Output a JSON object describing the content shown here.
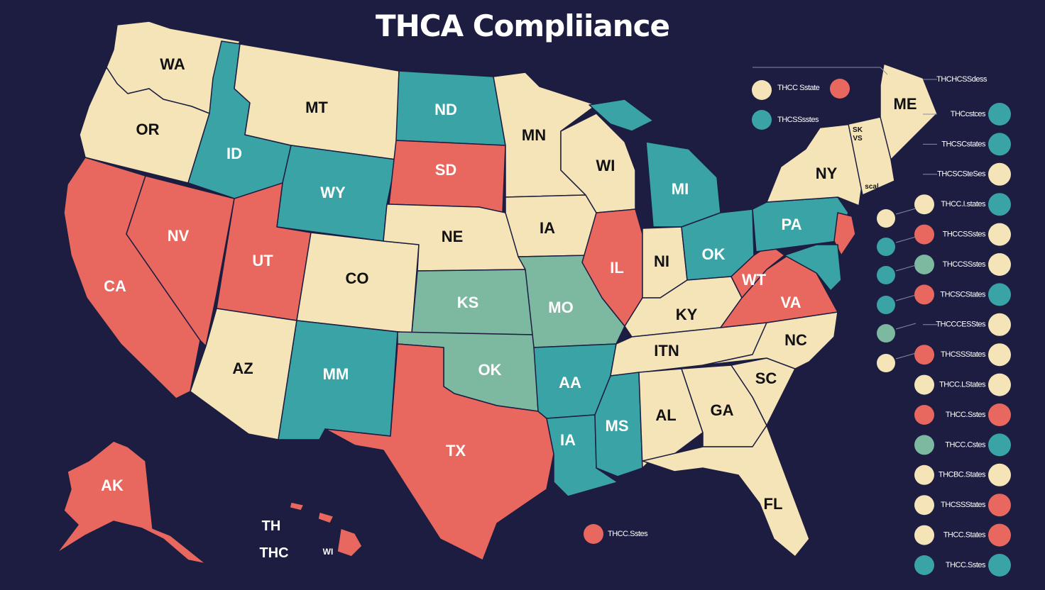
{
  "title": "THCA Compliiance",
  "colors": {
    "background": "#1c1d40",
    "cream": "#f4e4b8",
    "teal": "#3aa3a6",
    "red": "#e8675e",
    "sage": "#7db8a0",
    "border": "#1c1d40",
    "label_dark": "#111111",
    "label_light": "#ffffff"
  },
  "states": [
    {
      "id": "wa",
      "label": "WA",
      "fill": "cream"
    },
    {
      "id": "or",
      "label": "OR",
      "fill": "cream"
    },
    {
      "id": "ca",
      "label": "CA",
      "fill": "red"
    },
    {
      "id": "id",
      "label": "ID",
      "fill": "teal"
    },
    {
      "id": "nv",
      "label": "NV",
      "fill": "red"
    },
    {
      "id": "mt",
      "label": "MT",
      "fill": "cream"
    },
    {
      "id": "wy",
      "label": "WY",
      "fill": "teal"
    },
    {
      "id": "ut",
      "label": "UT",
      "fill": "red"
    },
    {
      "id": "az",
      "label": "AZ",
      "fill": "cream"
    },
    {
      "id": "co",
      "label": "CO",
      "fill": "cream"
    },
    {
      "id": "nm",
      "label": "MM",
      "fill": "teal"
    },
    {
      "id": "nd",
      "label": "ND",
      "fill": "teal"
    },
    {
      "id": "sd",
      "label": "SD",
      "fill": "red"
    },
    {
      "id": "ne",
      "label": "NE",
      "fill": "cream"
    },
    {
      "id": "ks",
      "label": "KS",
      "fill": "sage"
    },
    {
      "id": "ok",
      "label": "OK",
      "fill": "sage"
    },
    {
      "id": "tx",
      "label": "TX",
      "fill": "red"
    },
    {
      "id": "mn",
      "label": "MN",
      "fill": "cream"
    },
    {
      "id": "ia",
      "label": "IA",
      "fill": "cream"
    },
    {
      "id": "mo",
      "label": "MO",
      "fill": "sage"
    },
    {
      "id": "ar",
      "label": "AA",
      "fill": "teal"
    },
    {
      "id": "la",
      "label": "IA",
      "fill": "teal"
    },
    {
      "id": "wi",
      "label": "WI",
      "fill": "cream"
    },
    {
      "id": "il",
      "label": "IL",
      "fill": "red"
    },
    {
      "id": "mi",
      "label": "MI",
      "fill": "teal"
    },
    {
      "id": "in",
      "label": "NI",
      "fill": "cream"
    },
    {
      "id": "oh",
      "label": "OK",
      "fill": "teal"
    },
    {
      "id": "ky",
      "label": "KY",
      "fill": "cream"
    },
    {
      "id": "tn",
      "label": "ITN",
      "fill": "cream"
    },
    {
      "id": "ms",
      "label": "MS",
      "fill": "teal"
    },
    {
      "id": "al",
      "label": "AL",
      "fill": "cream"
    },
    {
      "id": "ga",
      "label": "GA",
      "fill": "cream"
    },
    {
      "id": "fl",
      "label": "FL",
      "fill": "cream"
    },
    {
      "id": "sc",
      "label": "SC",
      "fill": "cream"
    },
    {
      "id": "nc",
      "label": "NC",
      "fill": "cream"
    },
    {
      "id": "va",
      "label": "VA",
      "fill": "red"
    },
    {
      "id": "wv",
      "label": "WT",
      "fill": "red"
    },
    {
      "id": "pa",
      "label": "PA",
      "fill": "teal"
    },
    {
      "id": "ny",
      "label": "NY",
      "fill": "cream"
    },
    {
      "id": "me",
      "label": "ME",
      "fill": "cream"
    },
    {
      "id": "nj",
      "label": "",
      "fill": "red"
    },
    {
      "id": "md",
      "label": "",
      "fill": "teal"
    },
    {
      "id": "ne_small",
      "label": "",
      "fill": "cream"
    },
    {
      "id": "ak",
      "label": "AK",
      "fill": "red"
    },
    {
      "id": "hi",
      "label": "",
      "fill": "red"
    }
  ],
  "small_labels": [
    "SK",
    "VS",
    "scal"
  ],
  "hawaii_labels": [
    "TH",
    "THC",
    "WI"
  ],
  "legend_top": [
    {
      "text": "THCC Sstate",
      "color": "cream"
    },
    {
      "text": "THCSSsstes",
      "color": "teal"
    },
    {
      "text": "THCHCSSdess",
      "color": "red"
    }
  ],
  "legend_right": [
    {
      "text": "THCcstces",
      "left": "",
      "right": "teal"
    },
    {
      "text": "THCSCstates",
      "left": "",
      "right": "teal"
    },
    {
      "text": "THCSCSteSes",
      "left": "",
      "right": "cream"
    },
    {
      "text": "THCC.I.states",
      "left": "cream",
      "right": "teal"
    },
    {
      "text": "THCCSSstes",
      "left": "red",
      "right": "cream"
    },
    {
      "text": "THCCSSstes",
      "left": "sage",
      "right": "cream"
    },
    {
      "text": "THCSCStates",
      "left": "red",
      "right": "teal"
    },
    {
      "text": "THCCCESStes",
      "left": "",
      "right": "cream"
    },
    {
      "text": "THCSSStates",
      "left": "red",
      "right": "cream"
    },
    {
      "text": "THCC.LStates",
      "left": "cream",
      "right": "cream"
    },
    {
      "text": "THCC.Sstes",
      "left": "red",
      "right": "red"
    },
    {
      "text": "THCC.Cstes",
      "left": "sage",
      "right": "teal"
    },
    {
      "text": "THCBC.States",
      "left": "cream",
      "right": "cream"
    },
    {
      "text": "THCSSStates",
      "left": "cream",
      "right": "red"
    },
    {
      "text": "THCC.States",
      "left": "cream",
      "right": "red"
    },
    {
      "text": "THCC.Sstes",
      "left": "teal",
      "right": "teal"
    }
  ],
  "legend_mid": [
    {
      "color": "cream"
    },
    {
      "color": "teal"
    },
    {
      "color": "teal"
    },
    {
      "color": "teal"
    },
    {
      "color": "sage"
    },
    {
      "color": "cream"
    }
  ],
  "legend_bottom": {
    "text": "THCC.Sstes",
    "color": "red"
  }
}
